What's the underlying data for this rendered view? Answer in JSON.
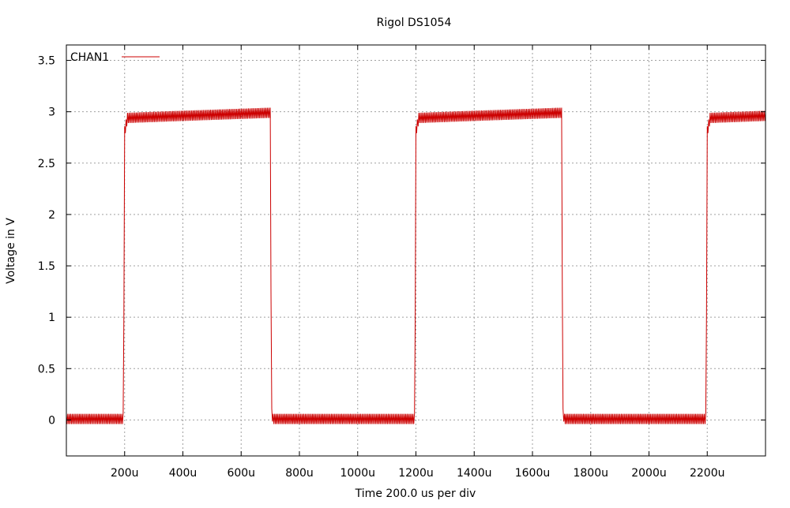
{
  "chart_data": {
    "type": "line",
    "title": "Rigol DS1054",
    "xlabel": "Time 200.0 us per div",
    "ylabel": "Voltage in V",
    "xlim": [
      0,
      2400
    ],
    "ylim": [
      -0.35,
      3.65
    ],
    "x_unit": "us",
    "xticks": [
      200,
      400,
      600,
      800,
      1000,
      1200,
      1400,
      1600,
      1800,
      2000,
      2200
    ],
    "xtick_labels": [
      "200u",
      "400u",
      "600u",
      "800u",
      "1000u",
      "1200u",
      "1400u",
      "1600u",
      "1800u",
      "2000u",
      "2200u"
    ],
    "yticks": [
      0,
      0.5,
      1,
      1.5,
      2,
      2.5,
      3,
      3.5
    ],
    "ytick_labels": [
      "0",
      "0.5",
      "1",
      "1.5",
      "2",
      "2.5",
      "3",
      "3.5"
    ],
    "grid": true,
    "legend_position": "top-left",
    "series": [
      {
        "name": "CHAN1",
        "color": "#cc0000",
        "x": [
          0,
          195,
          198,
          200,
          210,
          400,
          700,
          702,
          705,
          710,
          740,
          1195,
          1198,
          1200,
          1210,
          1400,
          1700,
          1702,
          1705,
          1710,
          1740,
          2195,
          2198,
          2200,
          2210,
          2400
        ],
        "y": [
          0,
          0,
          1.2,
          2.8,
          2.93,
          2.95,
          2.98,
          1.5,
          0.05,
          0,
          0,
          0,
          1.2,
          2.8,
          2.93,
          2.95,
          2.98,
          1.5,
          0.05,
          0,
          0,
          0,
          1.2,
          2.8,
          2.93,
          2.95
        ],
        "ripple_low": 0.04,
        "ripple_high": 0.06
      }
    ]
  }
}
